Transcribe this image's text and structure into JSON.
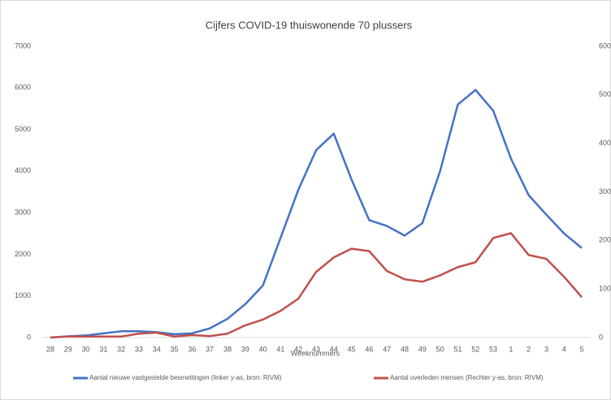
{
  "chart_data": {
    "type": "line",
    "title": "Cijfers COVID-19 thuiswonende 70 plussers",
    "x_label": "Weeknummers",
    "categories": [
      "28",
      "29",
      "30",
      "31",
      "32",
      "33",
      "34",
      "35",
      "36",
      "37",
      "38",
      "39",
      "40",
      "41",
      "42",
      "43",
      "44",
      "45",
      "46",
      "47",
      "48",
      "49",
      "50",
      "51",
      "52",
      "53",
      "1",
      "2",
      "3",
      "4",
      "5"
    ],
    "series": [
      {
        "name": "Aantal nieuwe vastgestelde besmettingen (linker y-as, bron: RIVM)",
        "color": "#4472c4",
        "axis": "y",
        "values": [
          0,
          30,
          50,
          100,
          150,
          150,
          130,
          80,
          100,
          220,
          450,
          800,
          1250,
          2400,
          3550,
          4500,
          4900,
          3800,
          2820,
          2680,
          2450,
          2750,
          4000,
          5600,
          5950,
          5450,
          4300,
          3420,
          2950,
          2500,
          2150
        ]
      },
      {
        "name": "Aantal overleden mensen (Rechter y-as, bron: RIVM)",
        "color": "#c0504d",
        "axis": "y2",
        "values": [
          0,
          2,
          2,
          2,
          2,
          8,
          10,
          2,
          5,
          3,
          8,
          25,
          37,
          55,
          80,
          135,
          165,
          183,
          178,
          137,
          120,
          115,
          128,
          145,
          155,
          205,
          215,
          170,
          162,
          125,
          83
        ]
      }
    ],
    "ylim": [
      0,
      7000
    ],
    "yticks": [
      0,
      1000,
      2000,
      3000,
      4000,
      5000,
      6000,
      7000
    ],
    "y2lim": [
      0,
      600
    ],
    "y2ticks": [
      0,
      100,
      200,
      300,
      400,
      500,
      600
    ],
    "legend": "bottom"
  }
}
